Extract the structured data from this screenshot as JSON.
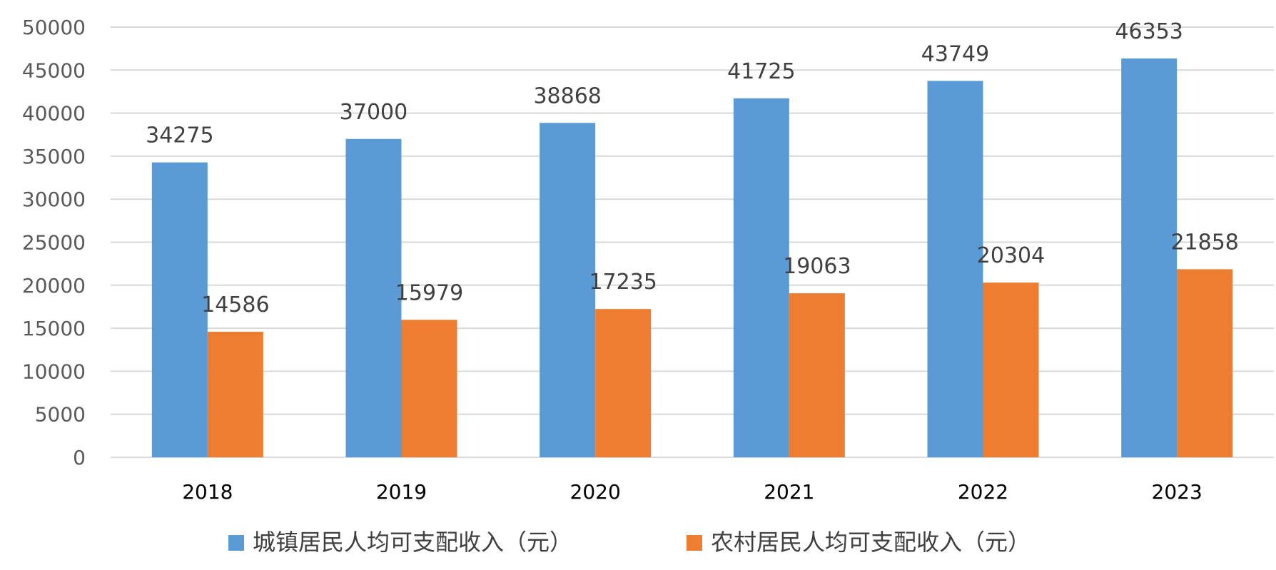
{
  "chart_data": {
    "type": "bar",
    "categories": [
      "2018",
      "2019",
      "2020",
      "2021",
      "2022",
      "2023"
    ],
    "series": [
      {
        "name": "城镇居民人均可支配收入（元）",
        "values": [
          34275,
          37000,
          38868,
          41725,
          43749,
          46353
        ],
        "color": "#5b9bd5"
      },
      {
        "name": "农村居民人均可支配收入（元）",
        "values": [
          14586,
          15979,
          17235,
          19063,
          20304,
          21858
        ],
        "color": "#ed7d31"
      }
    ],
    "ylim": [
      0,
      50000
    ],
    "yticks": [
      0,
      5000,
      10000,
      15000,
      20000,
      25000,
      30000,
      35000,
      40000,
      45000,
      50000
    ],
    "grid": true,
    "legend_position": "bottom",
    "data_labels": true
  }
}
